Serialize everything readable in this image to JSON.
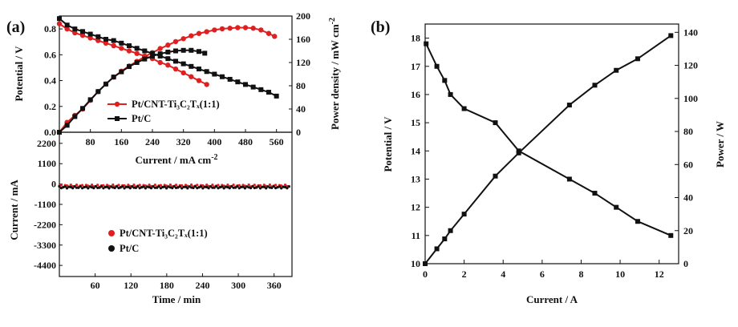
{
  "chart_data": [
    {
      "id": "a_top",
      "type": "line",
      "panel_label": "(a)",
      "xlabel": "Current / mA cm",
      "xlabel_sup": "-2",
      "ylabel": "Potential / V",
      "ylabel_right": "Power density / mW cm",
      "ylabel_right_sup": "-2",
      "xlim": [
        0,
        600
      ],
      "ylim": [
        0,
        0.9
      ],
      "ylim_right": [
        0,
        200
      ],
      "xticks": [
        "80",
        "160",
        "240",
        "320",
        "400",
        "480",
        "560"
      ],
      "yticks": [
        "0.0",
        "0.2",
        "0.4",
        "0.6",
        "0.8"
      ],
      "yticks_right": [
        "0",
        "40",
        "80",
        "120",
        "160",
        "200"
      ],
      "legend": [
        {
          "label": "Pt/CNT-Ti₃C₂Tₓ(1:1)",
          "color": "#e02020"
        },
        {
          "label": "Pt/C",
          "color": "#111111"
        }
      ],
      "series": [
        {
          "name": "Pt/CNT-Ti₃C₂Tₓ(1:1)",
          "axis": "left",
          "color": "#e02020",
          "x": [
            0,
            20,
            40,
            60,
            80,
            100,
            120,
            140,
            160,
            180,
            200,
            220,
            240,
            260,
            280,
            300,
            320,
            340,
            360,
            380
          ],
          "y": [
            0.84,
            0.8,
            0.77,
            0.75,
            0.73,
            0.71,
            0.69,
            0.67,
            0.65,
            0.63,
            0.61,
            0.59,
            0.57,
            0.54,
            0.52,
            0.49,
            0.46,
            0.43,
            0.4,
            0.37
          ]
        },
        {
          "name": "Pt/CNT-Ti₃C₂Tₓ(1:1) power",
          "axis": "right",
          "color": "#e02020",
          "x": [
            0,
            20,
            40,
            60,
            80,
            100,
            120,
            140,
            160,
            180,
            200,
            220,
            240,
            260,
            280,
            300,
            320,
            340,
            360,
            380,
            400,
            420,
            440,
            460,
            480,
            500,
            520,
            540,
            555
          ],
          "y": [
            0,
            17,
            29,
            40,
            55,
            70,
            83,
            95,
            105,
            114,
            122,
            130,
            137,
            144,
            150,
            156,
            161,
            166,
            170,
            173,
            176,
            178,
            179,
            180,
            180,
            179,
            176,
            170,
            165
          ]
        },
        {
          "name": "Pt/C",
          "axis": "left",
          "color": "#111111",
          "x": [
            0,
            20,
            40,
            60,
            80,
            100,
            120,
            140,
            160,
            180,
            200,
            220,
            240,
            260,
            280,
            300,
            320,
            340,
            360,
            380,
            400,
            420,
            440,
            460,
            480,
            500,
            520,
            540,
            560
          ],
          "y": [
            0.88,
            0.83,
            0.8,
            0.78,
            0.76,
            0.74,
            0.72,
            0.71,
            0.69,
            0.67,
            0.65,
            0.63,
            0.61,
            0.59,
            0.57,
            0.55,
            0.53,
            0.51,
            0.49,
            0.47,
            0.45,
            0.43,
            0.41,
            0.39,
            0.37,
            0.35,
            0.33,
            0.31,
            0.28
          ]
        },
        {
          "name": "Pt/C power",
          "axis": "right",
          "color": "#111111",
          "x": [
            0,
            20,
            40,
            60,
            80,
            100,
            120,
            140,
            160,
            180,
            200,
            220,
            240,
            260,
            280,
            300,
            320,
            340,
            360,
            375
          ],
          "y": [
            0,
            12,
            27,
            41,
            56,
            70,
            83,
            95,
            104,
            113,
            120,
            126,
            131,
            135,
            138,
            140,
            141,
            141,
            139,
            136
          ]
        }
      ]
    },
    {
      "id": "a_bottom",
      "type": "scatter",
      "xlabel": "Time / min",
      "ylabel": "Current / mA",
      "xlim": [
        0,
        390
      ],
      "ylim": [
        -5000,
        2800
      ],
      "xticks": [
        "60",
        "120",
        "180",
        "240",
        "300",
        "360"
      ],
      "yticks": [
        "2200",
        "1100",
        "0",
        "-1100",
        "-2200",
        "-3300",
        "-4400"
      ],
      "legend": [
        {
          "label": "Pt/CNT-Ti₃C₂Tₓ(1:1)",
          "color": "#e02020"
        },
        {
          "label": "Pt/C",
          "color": "#111111"
        }
      ],
      "series": [
        {
          "name": "Pt/CNT-Ti₃C₂Tₓ(1:1)",
          "color": "#e02020",
          "mean_y": -100,
          "spread": 60,
          "x_range": [
            0,
            385
          ]
        },
        {
          "name": "Pt/C",
          "color": "#111111",
          "mean_y": -180,
          "spread": 50,
          "x_range": [
            0,
            385
          ]
        }
      ]
    },
    {
      "id": "b",
      "type": "line",
      "panel_label": "(b)",
      "xlabel": "Current / A",
      "ylabel": "Potential / V",
      "ylabel_right": "Power / W",
      "xlim": [
        0,
        13
      ],
      "ylim": [
        10,
        18.5
      ],
      "ylim_right": [
        0,
        145
      ],
      "xticks": [
        "0",
        "2",
        "4",
        "6",
        "8",
        "10",
        "12"
      ],
      "yticks": [
        "10",
        "11",
        "12",
        "13",
        "14",
        "15",
        "16",
        "17",
        "18"
      ],
      "yticks_right": [
        "0",
        "20",
        "40",
        "60",
        "80",
        "100",
        "120",
        "140"
      ],
      "series": [
        {
          "name": "Potential",
          "axis": "left",
          "color": "#111111",
          "x": [
            0.05,
            0.6,
            1.0,
            1.3,
            2.0,
            3.6,
            4.8,
            7.4,
            8.7,
            9.8,
            10.9,
            12.6
          ],
          "y": [
            17.8,
            17.0,
            16.5,
            16.0,
            15.5,
            15.0,
            14.0,
            13.0,
            12.5,
            12.0,
            11.5,
            11.0
          ]
        },
        {
          "name": "Power",
          "axis": "right",
          "color": "#111111",
          "x": [
            0.0,
            0.6,
            1.0,
            1.3,
            2.0,
            3.6,
            4.8,
            7.4,
            8.7,
            9.8,
            10.9,
            12.6
          ],
          "y": [
            0,
            9,
            15,
            20,
            30,
            53,
            67,
            96,
            108,
            117,
            124,
            138
          ]
        }
      ]
    }
  ]
}
